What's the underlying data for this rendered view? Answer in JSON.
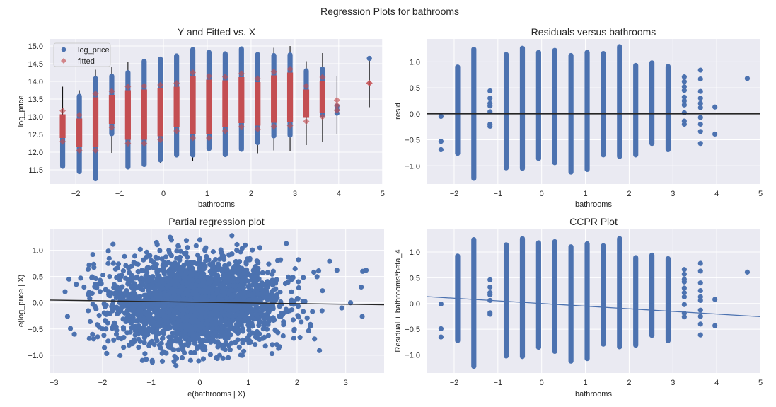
{
  "figure": {
    "suptitle": "Regression Plots for bathrooms",
    "background": "#ffffff",
    "axes_face": "#eaeaf2",
    "grid_color": "#ffffff",
    "colors": {
      "observed": "#4c72b0",
      "fitted": "#c44e52",
      "line_black": "#262626",
      "ccpr_line": "#4c72b0",
      "vline": "#000000"
    }
  },
  "chart_data": [
    {
      "id": "y_fitted",
      "type": "scatter",
      "title": "Y and Fitted vs. X",
      "xlabel": "bathrooms",
      "ylabel": "log_price",
      "xlim": [
        -2.6,
        5.02
      ],
      "ylim": [
        11.1,
        15.2
      ],
      "grid": true,
      "xticks": [
        -2,
        -1,
        0,
        1,
        2,
        3,
        4,
        5
      ],
      "xtick_labels": [
        "−2",
        "−1",
        "0",
        "1",
        "2",
        "3",
        "4",
        "5"
      ],
      "yticks": [
        11.5,
        12.0,
        12.5,
        13.0,
        13.5,
        14.0,
        14.5,
        15.0
      ],
      "ytick_labels": [
        "11.5",
        "12.0",
        "12.5",
        "13.0",
        "13.5",
        "14.0",
        "14.5",
        "15.0"
      ],
      "legend": {
        "location": "top-left",
        "entries": [
          {
            "label": "log_price",
            "marker": "circle",
            "color": "#4c72b0"
          },
          {
            "label": "fitted",
            "marker": "diamond",
            "color": "#c44e52"
          }
        ]
      },
      "columns": [
        {
          "x": -2.3,
          "obs": [
            11.6,
            12.67
          ],
          "fit": [
            12.3,
            13.17
          ],
          "vline": [
            11.6,
            13.85
          ]
        },
        {
          "x": -1.92,
          "obs": [
            11.45,
            13.58
          ],
          "fit": [
            12.05,
            13.05
          ],
          "vline": [
            11.4,
            13.75
          ]
        },
        {
          "x": -1.55,
          "obs": [
            11.25,
            14.08
          ],
          "fit": [
            12.05,
            13.65
          ],
          "vline": [
            11.25,
            14.33
          ]
        },
        {
          "x": -1.18,
          "obs": [
            12.52,
            14.15
          ],
          "fit": [
            12.7,
            13.72
          ],
          "vline": [
            11.98,
            14.4
          ]
        },
        {
          "x": -0.81,
          "obs": [
            11.58,
            14.25
          ],
          "fit": [
            12.25,
            13.85
          ],
          "vline": [
            11.58,
            14.55
          ]
        },
        {
          "x": -0.44,
          "obs": [
            11.65,
            14.57
          ],
          "fit": [
            12.25,
            13.87
          ],
          "vline": [
            11.6,
            14.57
          ]
        },
        {
          "x": -0.07,
          "obs": [
            11.78,
            14.63
          ],
          "fit": [
            12.35,
            13.9
          ],
          "vline": [
            11.7,
            14.63
          ]
        },
        {
          "x": 0.3,
          "obs": [
            11.92,
            14.72
          ],
          "fit": [
            12.6,
            13.95
          ],
          "vline": [
            11.88,
            14.72
          ]
        },
        {
          "x": 0.67,
          "obs": [
            11.92,
            14.9
          ],
          "fit": [
            12.4,
            14.25
          ],
          "vline": [
            11.75,
            14.9
          ]
        },
        {
          "x": 1.04,
          "obs": [
            12.1,
            14.82
          ],
          "fit": [
            12.4,
            14.15
          ],
          "vline": [
            11.75,
            14.82
          ]
        },
        {
          "x": 1.41,
          "obs": [
            11.93,
            14.78
          ],
          "fit": [
            12.6,
            14.13
          ],
          "vline": [
            11.93,
            14.78
          ]
        },
        {
          "x": 1.78,
          "obs": [
            12.08,
            14.92
          ],
          "fit": [
            12.72,
            14.22
          ],
          "vline": [
            12.08,
            14.92
          ]
        },
        {
          "x": 2.15,
          "obs": [
            12.27,
            14.76
          ],
          "fit": [
            12.65,
            14.08
          ],
          "vline": [
            11.97,
            14.76
          ]
        },
        {
          "x": 2.52,
          "obs": [
            12.46,
            14.73
          ],
          "fit": [
            12.73,
            14.27
          ],
          "vline": [
            12.05,
            14.95
          ]
        },
        {
          "x": 2.89,
          "obs": [
            12.48,
            14.75
          ],
          "fit": [
            12.75,
            14.35
          ],
          "vline": [
            12.02,
            15.0
          ]
        },
        {
          "x": 3.26,
          "obs": [
            13.2,
            14.3
          ],
          "fit": [
            12.87,
            13.87
          ],
          "vline": [
            12.2,
            14.57
          ]
        },
        {
          "x": 3.63,
          "obs": [
            13.05,
            14.35
          ],
          "fit": [
            13.0,
            14.12
          ],
          "vline": [
            12.3,
            14.8
          ]
        },
        {
          "x": 3.96,
          "obs": [
            13.1,
            13.3
          ],
          "fit": [
            13.18,
            13.47
          ],
          "vline": [
            12.5,
            14.15
          ]
        },
        {
          "x": 4.7,
          "obs": [
            14.65,
            14.65
          ],
          "fit": [
            13.95,
            13.95
          ],
          "vline": [
            13.27,
            14.65
          ]
        }
      ]
    },
    {
      "id": "residuals",
      "type": "scatter",
      "title": "Residuals versus bathrooms",
      "xlabel": "bathrooms",
      "ylabel": "resid",
      "xlim": [
        -2.63,
        5.0
      ],
      "ylim": [
        -1.35,
        1.44
      ],
      "grid": true,
      "xticks": [
        -2,
        -1,
        0,
        1,
        2,
        3,
        4,
        5
      ],
      "xtick_labels": [
        "−2",
        "−1",
        "0",
        "1",
        "2",
        "3",
        "4",
        "5"
      ],
      "yticks": [
        -1.0,
        -0.5,
        0.0,
        0.5,
        1.0
      ],
      "ytick_labels": [
        "−1.0",
        "−0.5",
        "0.0",
        "0.5",
        "1.0"
      ],
      "hline": 0.0,
      "columns": [
        {
          "x": -2.3,
          "pts": [
            -0.05,
            -0.53,
            -0.69
          ]
        },
        {
          "x": -1.92,
          "range": [
            -0.76,
            0.9
          ]
        },
        {
          "x": -1.55,
          "range": [
            -1.24,
            1.24
          ]
        },
        {
          "x": -1.18,
          "pts": [
            0.44,
            0.3,
            0.2,
            0.15,
            0.04,
            -0.2,
            -0.24
          ]
        },
        {
          "x": -0.81,
          "range": [
            -1.04,
            1.14
          ]
        },
        {
          "x": -0.44,
          "range": [
            -1.05,
            1.26
          ]
        },
        {
          "x": -0.07,
          "range": [
            -0.86,
            1.18
          ]
        },
        {
          "x": 0.3,
          "range": [
            -0.94,
            1.22
          ]
        },
        {
          "x": 0.67,
          "range": [
            -1.12,
            1.12
          ]
        },
        {
          "x": 1.04,
          "range": [
            -1.07,
            1.18
          ]
        },
        {
          "x": 1.41,
          "range": [
            -0.79,
            1.16
          ]
        },
        {
          "x": 1.78,
          "range": [
            -0.82,
            1.29
          ]
        },
        {
          "x": 2.15,
          "range": [
            -0.79,
            0.93
          ]
        },
        {
          "x": 2.52,
          "range": [
            -0.57,
            0.98
          ]
        },
        {
          "x": 2.89,
          "range": [
            -0.69,
            0.91
          ]
        },
        {
          "x": 3.26,
          "pts": [
            0.71,
            0.62,
            0.52,
            0.45,
            0.32,
            0.25,
            0.17,
            0.02,
            -0.14,
            -0.2
          ]
        },
        {
          "x": 3.63,
          "pts": [
            0.84,
            0.67,
            0.43,
            0.3,
            0.2,
            0.12,
            -0.07,
            -0.2,
            -0.34,
            -0.57
          ]
        },
        {
          "x": 3.96,
          "pts": [
            0.13,
            -0.39
          ]
        },
        {
          "x": 4.7,
          "pts": [
            0.68
          ]
        }
      ]
    },
    {
      "id": "partial_regression",
      "type": "scatter",
      "title": "Partial regression plot",
      "xlabel": "e(bathrooms | X)",
      "ylabel": "e(log_price | X)",
      "xlim": [
        -3.09,
        3.79
      ],
      "ylim": [
        -1.34,
        1.4
      ],
      "grid": true,
      "xticks": [
        -3,
        -2,
        -1,
        0,
        1,
        2,
        3
      ],
      "xtick_labels": [
        "−3",
        "−2",
        "−1",
        "0",
        "1",
        "2",
        "3"
      ],
      "yticks": [
        -1.0,
        -0.5,
        0.0,
        0.5,
        1.0
      ],
      "ytick_labels": [
        "−1.0",
        "−0.5",
        "0.0",
        "0.5",
        "1.0"
      ],
      "fit_line": {
        "slope": -0.013,
        "intercept": 0.011
      },
      "cloud": {
        "center_x": -0.1,
        "center_y": 0.0,
        "spread_x": 0.85,
        "spread_y": 0.4
      },
      "outliers": [
        [
          -2.72,
          -0.26
        ],
        [
          -2.66,
          -0.49
        ],
        [
          -2.58,
          -0.6
        ],
        [
          -2.77,
          0.21
        ],
        [
          -2.69,
          0.45
        ],
        [
          -2.54,
          0.35
        ],
        [
          -2.45,
          0.47
        ],
        [
          -2.38,
          0.3
        ],
        [
          -2.1,
          -0.65
        ],
        [
          -2.2,
          0.92
        ],
        [
          -1.77,
          -0.71
        ],
        [
          -1.93,
          -0.5
        ],
        [
          3.35,
          0.6
        ],
        [
          3.42,
          0.62
        ],
        [
          3.32,
          0.3
        ],
        [
          3.34,
          -0.26
        ],
        [
          3.1,
          0.0
        ],
        [
          2.92,
          -0.1
        ],
        [
          2.67,
          0.79
        ],
        [
          2.82,
          0.62
        ],
        [
          2.36,
          -0.69
        ],
        [
          2.06,
          -0.66
        ],
        [
          -1.18,
          -1.1
        ],
        [
          -0.49,
          -1.2
        ],
        [
          -0.53,
          -1.12
        ],
        [
          -0.19,
          -1.1
        ],
        [
          0.34,
          -1.05
        ],
        [
          -0.61,
          1.25
        ],
        [
          0.66,
          1.28
        ],
        [
          1.78,
          1.13
        ],
        [
          -0.89,
          1.15
        ],
        [
          0.0,
          1.2
        ]
      ]
    },
    {
      "id": "ccpr",
      "type": "scatter",
      "title": "CCPR Plot",
      "xlabel": "bathrooms",
      "ylabel": "Residual + bathrooms*beta_4",
      "xlim": [
        -2.63,
        5.0
      ],
      "ylim": [
        -1.35,
        1.44
      ],
      "grid": true,
      "xticks": [
        -2,
        -1,
        0,
        1,
        2,
        3,
        4,
        5
      ],
      "xtick_labels": [
        "−2",
        "−1",
        "0",
        "1",
        "2",
        "3",
        "4",
        "5"
      ],
      "yticks": [
        -1.0,
        -0.5,
        0.0,
        0.5,
        1.0
      ],
      "ytick_labels": [
        "−1.0",
        "−0.5",
        "0.0",
        "0.5",
        "1.0"
      ],
      "fit_line": {
        "slope": -0.0128,
        "intercept": 0.0
      },
      "columns": [
        {
          "x": -2.3,
          "pts": [
            -0.01,
            -0.49,
            -0.65
          ]
        },
        {
          "x": -1.92,
          "range": [
            -0.72,
            0.92
          ]
        },
        {
          "x": -1.55,
          "range": [
            -1.22,
            1.24
          ]
        },
        {
          "x": -1.18,
          "pts": [
            0.46,
            0.32,
            0.21,
            0.17,
            0.06,
            -0.18,
            -0.21
          ]
        },
        {
          "x": -0.81,
          "range": [
            -1.02,
            1.14
          ]
        },
        {
          "x": -0.44,
          "range": [
            -1.03,
            1.26
          ]
        },
        {
          "x": -0.07,
          "range": [
            -0.85,
            1.18
          ]
        },
        {
          "x": 0.3,
          "range": [
            -0.93,
            1.2
          ]
        },
        {
          "x": 0.67,
          "range": [
            -1.12,
            1.1
          ]
        },
        {
          "x": 1.04,
          "range": [
            -1.07,
            1.16
          ]
        },
        {
          "x": 1.41,
          "range": [
            -0.79,
            1.12
          ]
        },
        {
          "x": 1.78,
          "range": [
            -0.84,
            1.26
          ]
        },
        {
          "x": 2.15,
          "range": [
            -0.81,
            0.89
          ]
        },
        {
          "x": 2.52,
          "range": [
            -0.62,
            0.94
          ]
        },
        {
          "x": 2.89,
          "range": [
            -0.72,
            0.87
          ]
        },
        {
          "x": 3.26,
          "pts": [
            0.66,
            0.57,
            0.47,
            0.42,
            0.3,
            0.21,
            0.13,
            -0.02,
            -0.19,
            -0.26
          ]
        },
        {
          "x": 3.63,
          "pts": [
            0.78,
            0.63,
            0.4,
            0.25,
            0.13,
            0.06,
            -0.13,
            -0.25,
            -0.4,
            -0.61
          ]
        },
        {
          "x": 3.96,
          "pts": [
            0.08,
            -0.43
          ]
        },
        {
          "x": 4.7,
          "pts": [
            0.61
          ]
        }
      ]
    }
  ]
}
